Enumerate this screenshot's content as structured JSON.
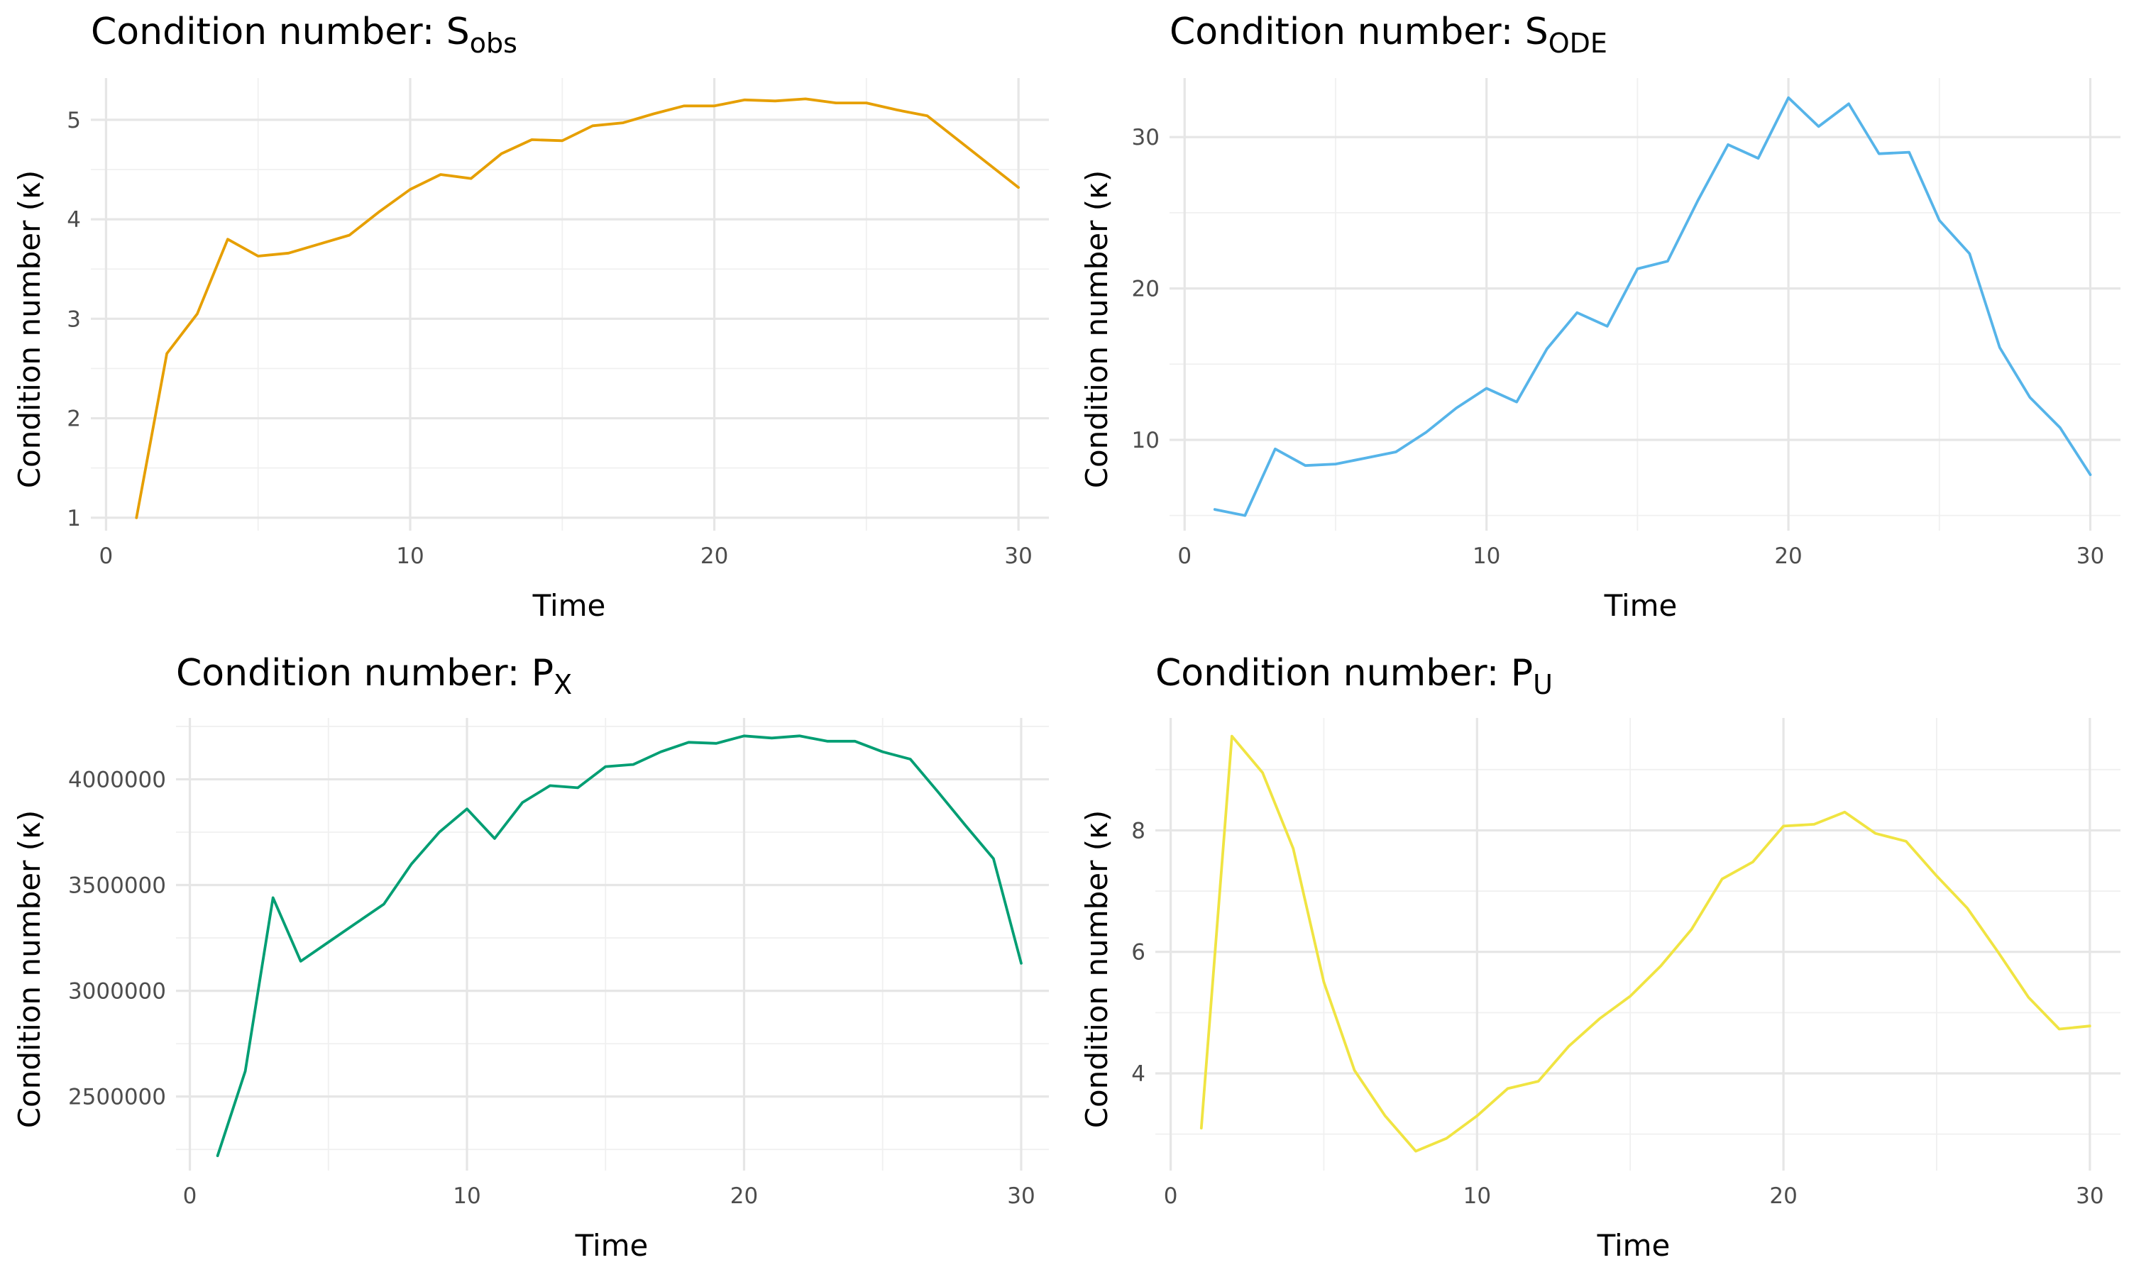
{
  "chart_data": [
    {
      "type": "line",
      "title": "Condition number: S",
      "title_subscript": "obs",
      "xlabel": "Time",
      "ylabel": "Condition number (κ)",
      "color": "#E69F00",
      "grid": true,
      "xlim": [
        -0.5,
        31
      ],
      "ylim": [
        0.87,
        5.42
      ],
      "xticks": [
        0,
        10,
        20,
        30
      ],
      "xtick_labels": [
        "0",
        "10",
        "20",
        "30"
      ],
      "yticks": [
        1,
        2,
        3,
        4,
        5
      ],
      "ytick_labels": [
        "1",
        "2",
        "3",
        "4",
        "5"
      ],
      "x": [
        1,
        2,
        3,
        4,
        5,
        6,
        7,
        8,
        9,
        10,
        11,
        12,
        13,
        14,
        15,
        16,
        17,
        18,
        19,
        20,
        21,
        22,
        23,
        24,
        25,
        26,
        27,
        28,
        29,
        30
      ],
      "y": [
        1.0,
        2.65,
        3.05,
        3.8,
        3.63,
        3.66,
        3.75,
        3.84,
        4.08,
        4.3,
        4.45,
        4.41,
        4.66,
        4.8,
        4.79,
        4.94,
        4.97,
        5.06,
        5.14,
        5.14,
        5.2,
        5.19,
        5.21,
        5.17,
        5.17,
        5.1,
        5.04,
        4.8,
        4.56,
        4.32
      ]
    },
    {
      "type": "line",
      "title": "Condition number: S",
      "title_subscript": "ODE",
      "xlabel": "Time",
      "ylabel": "Condition number (κ)",
      "color": "#56B4E9",
      "grid": true,
      "xlim": [
        -0.5,
        31
      ],
      "ylim": [
        4.0,
        33.9
      ],
      "xticks": [
        0,
        10,
        20,
        30
      ],
      "xtick_labels": [
        "0",
        "10",
        "20",
        "30"
      ],
      "yticks": [
        10,
        20,
        30
      ],
      "ytick_labels": [
        "10",
        "20",
        "30"
      ],
      "x": [
        1,
        2,
        3,
        4,
        5,
        6,
        7,
        8,
        9,
        10,
        11,
        12,
        13,
        14,
        15,
        16,
        17,
        18,
        19,
        20,
        21,
        22,
        23,
        24,
        25,
        26,
        27,
        28,
        29,
        30
      ],
      "y": [
        5.4,
        5.0,
        9.4,
        8.3,
        8.4,
        8.8,
        9.2,
        10.5,
        12.1,
        13.4,
        12.5,
        16.0,
        18.4,
        17.5,
        21.3,
        21.8,
        25.8,
        29.5,
        28.6,
        32.6,
        30.7,
        32.2,
        28.9,
        29.0,
        24.5,
        22.3,
        16.1,
        12.8,
        10.8,
        7.7
      ]
    },
    {
      "type": "line",
      "title": "Condition number: P",
      "title_subscript": "X",
      "xlabel": "Time",
      "ylabel": "Condition number (κ)",
      "color": "#009E73",
      "grid": true,
      "xlim": [
        -0.5,
        31
      ],
      "ylim": [
        2150000,
        4290000
      ],
      "xticks": [
        0,
        10,
        20,
        30
      ],
      "xtick_labels": [
        "0",
        "10",
        "20",
        "30"
      ],
      "yticks": [
        2500000,
        3000000,
        3500000,
        4000000
      ],
      "ytick_labels": [
        "2500000",
        "3000000",
        "3500000",
        "4000000"
      ],
      "x": [
        1,
        2,
        3,
        4,
        5,
        6,
        7,
        8,
        9,
        10,
        11,
        12,
        13,
        14,
        15,
        16,
        17,
        18,
        19,
        20,
        21,
        22,
        23,
        24,
        25,
        26,
        27,
        28,
        29,
        30
      ],
      "y": [
        2220000,
        2620000,
        3440000,
        3140000,
        3230000,
        3320000,
        3410000,
        3600000,
        3750000,
        3860000,
        3720000,
        3890000,
        3970000,
        3960000,
        4060000,
        4070000,
        4130000,
        4175000,
        4170000,
        4205000,
        4195000,
        4205000,
        4180000,
        4180000,
        4130000,
        4095000,
        3940000,
        3780000,
        3625000,
        3130000
      ]
    },
    {
      "type": "line",
      "title": "Condition number: P",
      "title_subscript": "U",
      "xlabel": "Time",
      "ylabel": "Condition number (κ)",
      "color": "#F0E442",
      "grid": true,
      "xlim": [
        -0.5,
        31
      ],
      "ylim": [
        2.4,
        9.85
      ],
      "xticks": [
        0,
        10,
        20,
        30
      ],
      "xtick_labels": [
        "0",
        "10",
        "20",
        "30"
      ],
      "yticks": [
        4,
        6,
        8
      ],
      "ytick_labels": [
        "4",
        "6",
        "8"
      ],
      "x": [
        1,
        2,
        3,
        4,
        5,
        6,
        7,
        8,
        9,
        10,
        11,
        12,
        13,
        14,
        15,
        16,
        17,
        18,
        19,
        20,
        21,
        22,
        23,
        24,
        25,
        26,
        27,
        28,
        29,
        30
      ],
      "y": [
        3.1,
        9.55,
        8.95,
        7.7,
        5.5,
        4.05,
        3.3,
        2.72,
        2.93,
        3.3,
        3.75,
        3.87,
        4.45,
        4.9,
        5.27,
        5.77,
        6.37,
        7.2,
        7.48,
        8.07,
        8.1,
        8.3,
        7.95,
        7.82,
        7.25,
        6.72,
        6.0,
        5.25,
        4.73,
        4.78
      ]
    }
  ]
}
